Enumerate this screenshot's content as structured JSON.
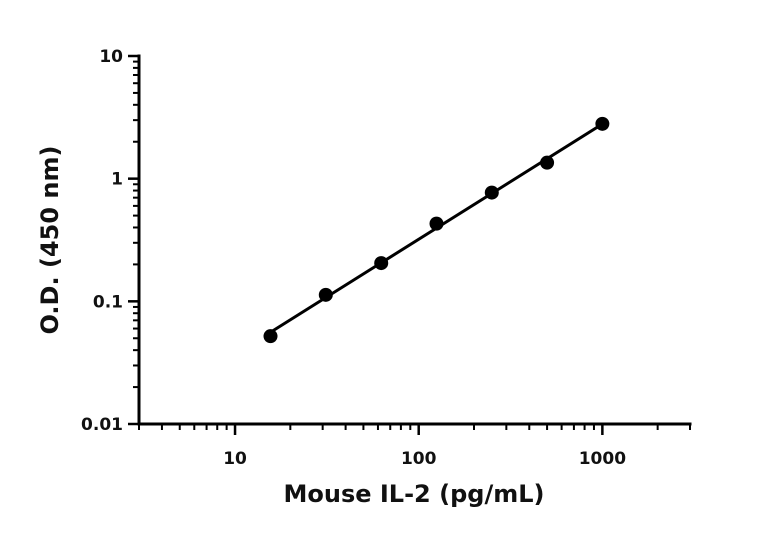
{
  "chart_data": {
    "type": "scatter",
    "xlabel": "Mouse IL-2 (pg/mL)",
    "ylabel": "O.D. (450 nm)",
    "x_scale": "log",
    "y_scale": "log",
    "xlim": [
      3,
      3000
    ],
    "ylim": [
      0.01,
      10
    ],
    "x_ticks": [
      10,
      100,
      1000
    ],
    "x_tick_labels": [
      "10",
      "100",
      "1000"
    ],
    "y_ticks": [
      0.01,
      0.1,
      1,
      10
    ],
    "y_tick_labels": [
      "0.01",
      "0.1",
      "1",
      "10"
    ],
    "grid": false,
    "legend": "none",
    "marker_color": "#000000",
    "line_color": "#000000",
    "fit_line": true,
    "series": [
      {
        "x": [
          15.6,
          31.2,
          62.5,
          125,
          250,
          500,
          1000
        ],
        "y": [
          0.052,
          0.113,
          0.205,
          0.43,
          0.77,
          1.35,
          2.8
        ]
      }
    ]
  }
}
